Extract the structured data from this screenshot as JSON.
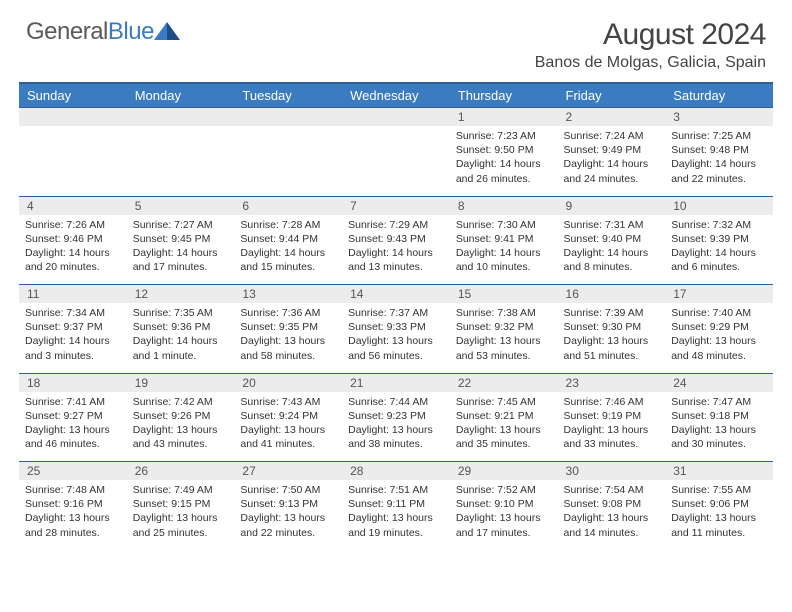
{
  "brand": {
    "part1": "General",
    "part2": "Blue"
  },
  "title": "August 2024",
  "location": "Banos de Molgas, Galicia, Spain",
  "colors": {
    "header_bg": "#3b7bbf",
    "border": "#2e5f96",
    "daynum_bg": "#ececec",
    "text": "#333333"
  },
  "dayLabels": [
    "Sunday",
    "Monday",
    "Tuesday",
    "Wednesday",
    "Thursday",
    "Friday",
    "Saturday"
  ],
  "weeks": [
    [
      null,
      null,
      null,
      null,
      {
        "n": "1",
        "sr": "7:23 AM",
        "ss": "9:50 PM",
        "dl": "14 hours and 26 minutes."
      },
      {
        "n": "2",
        "sr": "7:24 AM",
        "ss": "9:49 PM",
        "dl": "14 hours and 24 minutes."
      },
      {
        "n": "3",
        "sr": "7:25 AM",
        "ss": "9:48 PM",
        "dl": "14 hours and 22 minutes."
      }
    ],
    [
      {
        "n": "4",
        "sr": "7:26 AM",
        "ss": "9:46 PM",
        "dl": "14 hours and 20 minutes."
      },
      {
        "n": "5",
        "sr": "7:27 AM",
        "ss": "9:45 PM",
        "dl": "14 hours and 17 minutes."
      },
      {
        "n": "6",
        "sr": "7:28 AM",
        "ss": "9:44 PM",
        "dl": "14 hours and 15 minutes."
      },
      {
        "n": "7",
        "sr": "7:29 AM",
        "ss": "9:43 PM",
        "dl": "14 hours and 13 minutes."
      },
      {
        "n": "8",
        "sr": "7:30 AM",
        "ss": "9:41 PM",
        "dl": "14 hours and 10 minutes."
      },
      {
        "n": "9",
        "sr": "7:31 AM",
        "ss": "9:40 PM",
        "dl": "14 hours and 8 minutes."
      },
      {
        "n": "10",
        "sr": "7:32 AM",
        "ss": "9:39 PM",
        "dl": "14 hours and 6 minutes."
      }
    ],
    [
      {
        "n": "11",
        "sr": "7:34 AM",
        "ss": "9:37 PM",
        "dl": "14 hours and 3 minutes."
      },
      {
        "n": "12",
        "sr": "7:35 AM",
        "ss": "9:36 PM",
        "dl": "14 hours and 1 minute."
      },
      {
        "n": "13",
        "sr": "7:36 AM",
        "ss": "9:35 PM",
        "dl": "13 hours and 58 minutes."
      },
      {
        "n": "14",
        "sr": "7:37 AM",
        "ss": "9:33 PM",
        "dl": "13 hours and 56 minutes."
      },
      {
        "n": "15",
        "sr": "7:38 AM",
        "ss": "9:32 PM",
        "dl": "13 hours and 53 minutes."
      },
      {
        "n": "16",
        "sr": "7:39 AM",
        "ss": "9:30 PM",
        "dl": "13 hours and 51 minutes."
      },
      {
        "n": "17",
        "sr": "7:40 AM",
        "ss": "9:29 PM",
        "dl": "13 hours and 48 minutes."
      }
    ],
    [
      {
        "n": "18",
        "sr": "7:41 AM",
        "ss": "9:27 PM",
        "dl": "13 hours and 46 minutes."
      },
      {
        "n": "19",
        "sr": "7:42 AM",
        "ss": "9:26 PM",
        "dl": "13 hours and 43 minutes."
      },
      {
        "n": "20",
        "sr": "7:43 AM",
        "ss": "9:24 PM",
        "dl": "13 hours and 41 minutes."
      },
      {
        "n": "21",
        "sr": "7:44 AM",
        "ss": "9:23 PM",
        "dl": "13 hours and 38 minutes."
      },
      {
        "n": "22",
        "sr": "7:45 AM",
        "ss": "9:21 PM",
        "dl": "13 hours and 35 minutes."
      },
      {
        "n": "23",
        "sr": "7:46 AM",
        "ss": "9:19 PM",
        "dl": "13 hours and 33 minutes."
      },
      {
        "n": "24",
        "sr": "7:47 AM",
        "ss": "9:18 PM",
        "dl": "13 hours and 30 minutes."
      }
    ],
    [
      {
        "n": "25",
        "sr": "7:48 AM",
        "ss": "9:16 PM",
        "dl": "13 hours and 28 minutes."
      },
      {
        "n": "26",
        "sr": "7:49 AM",
        "ss": "9:15 PM",
        "dl": "13 hours and 25 minutes."
      },
      {
        "n": "27",
        "sr": "7:50 AM",
        "ss": "9:13 PM",
        "dl": "13 hours and 22 minutes."
      },
      {
        "n": "28",
        "sr": "7:51 AM",
        "ss": "9:11 PM",
        "dl": "13 hours and 19 minutes."
      },
      {
        "n": "29",
        "sr": "7:52 AM",
        "ss": "9:10 PM",
        "dl": "13 hours and 17 minutes."
      },
      {
        "n": "30",
        "sr": "7:54 AM",
        "ss": "9:08 PM",
        "dl": "13 hours and 14 minutes."
      },
      {
        "n": "31",
        "sr": "7:55 AM",
        "ss": "9:06 PM",
        "dl": "13 hours and 11 minutes."
      }
    ]
  ],
  "labels": {
    "sunrise": "Sunrise: ",
    "sunset": "Sunset: ",
    "daylight": "Daylight: "
  }
}
